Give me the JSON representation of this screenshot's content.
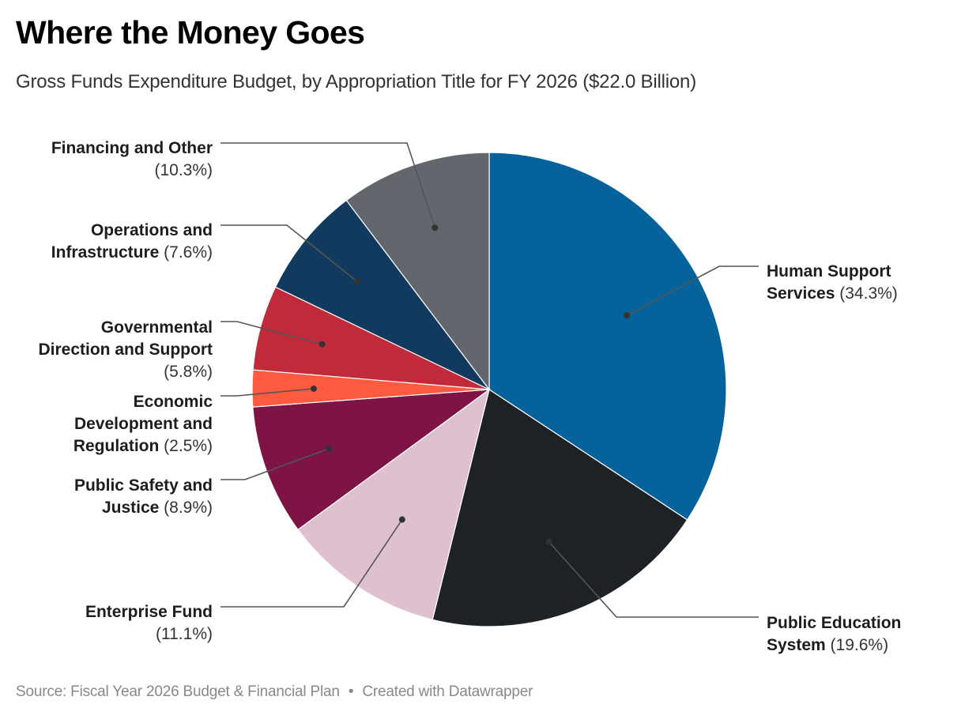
{
  "header": {
    "title": "Where the Money Goes",
    "subtitle": "Gross Funds Expenditure Budget, by Appropriation Title for FY 2026 ($22.0 Billion)"
  },
  "footer": {
    "source": "Source: Fiscal Year 2026 Budget & Financial Plan",
    "separator": "•",
    "credit": "Created with Datawrapper"
  },
  "chart_data": {
    "type": "pie",
    "title": "Where the Money Goes",
    "subtitle": "Gross Funds Expenditure Budget, by Appropriation Title for FY 2026 ($22.0 Billion)",
    "unit": "percent",
    "total": "$22.0 Billion",
    "start": "top, clockwise",
    "slices": [
      {
        "label": "Human Support Services",
        "value": 34.3,
        "pct_text": "(34.3%)",
        "color": "#05629a",
        "side": "right",
        "lines": [
          {
            "bold": "Human Support"
          },
          {
            "bold": "Services",
            "pct": true
          }
        ]
      },
      {
        "label": "Public Education System",
        "value": 19.6,
        "pct_text": "(19.6%)",
        "color": "#1e2226",
        "side": "right",
        "lines": [
          {
            "bold": "Public Education"
          },
          {
            "bold": "System",
            "pct": true
          }
        ]
      },
      {
        "label": "Enterprise Fund",
        "value": 11.1,
        "pct_text": "(11.1%)",
        "color": "#dec0cf",
        "side": "left",
        "lines": [
          {
            "bold": "Enterprise Fund"
          },
          {
            "bold": "",
            "pct": true
          }
        ]
      },
      {
        "label": "Public Safety and Justice",
        "value": 8.9,
        "pct_text": "(8.9%)",
        "color": "#7e1445",
        "side": "left",
        "lines": [
          {
            "bold": "Public Safety and"
          },
          {
            "bold": "Justice",
            "pct": true
          }
        ]
      },
      {
        "label": "Economic Development and Regulation",
        "value": 2.5,
        "pct_text": "(2.5%)",
        "color": "#fe5a40",
        "side": "left",
        "lines": [
          {
            "bold": "Economic"
          },
          {
            "bold": "Development and"
          },
          {
            "bold": "Regulation",
            "pct": true
          }
        ]
      },
      {
        "label": "Governmental Direction and Support",
        "value": 5.8,
        "pct_text": "(5.8%)",
        "color": "#c12a3a",
        "side": "left",
        "lines": [
          {
            "bold": "Governmental"
          },
          {
            "bold": "Direction and Support"
          },
          {
            "bold": "",
            "pct": true
          }
        ]
      },
      {
        "label": "Operations and Infrastructure",
        "value": 7.6,
        "pct_text": "(7.6%)",
        "color": "#113a5e",
        "side": "left",
        "lines": [
          {
            "bold": "Operations and"
          },
          {
            "bold": "Infrastructure",
            "pct": true
          }
        ]
      },
      {
        "label": "Financing and Other",
        "value": 10.3,
        "pct_text": "(10.3%)",
        "color": "#61676d",
        "side": "left",
        "lines": [
          {
            "bold": "Financing and Other"
          },
          {
            "bold": "",
            "pct": true
          }
        ]
      }
    ]
  }
}
